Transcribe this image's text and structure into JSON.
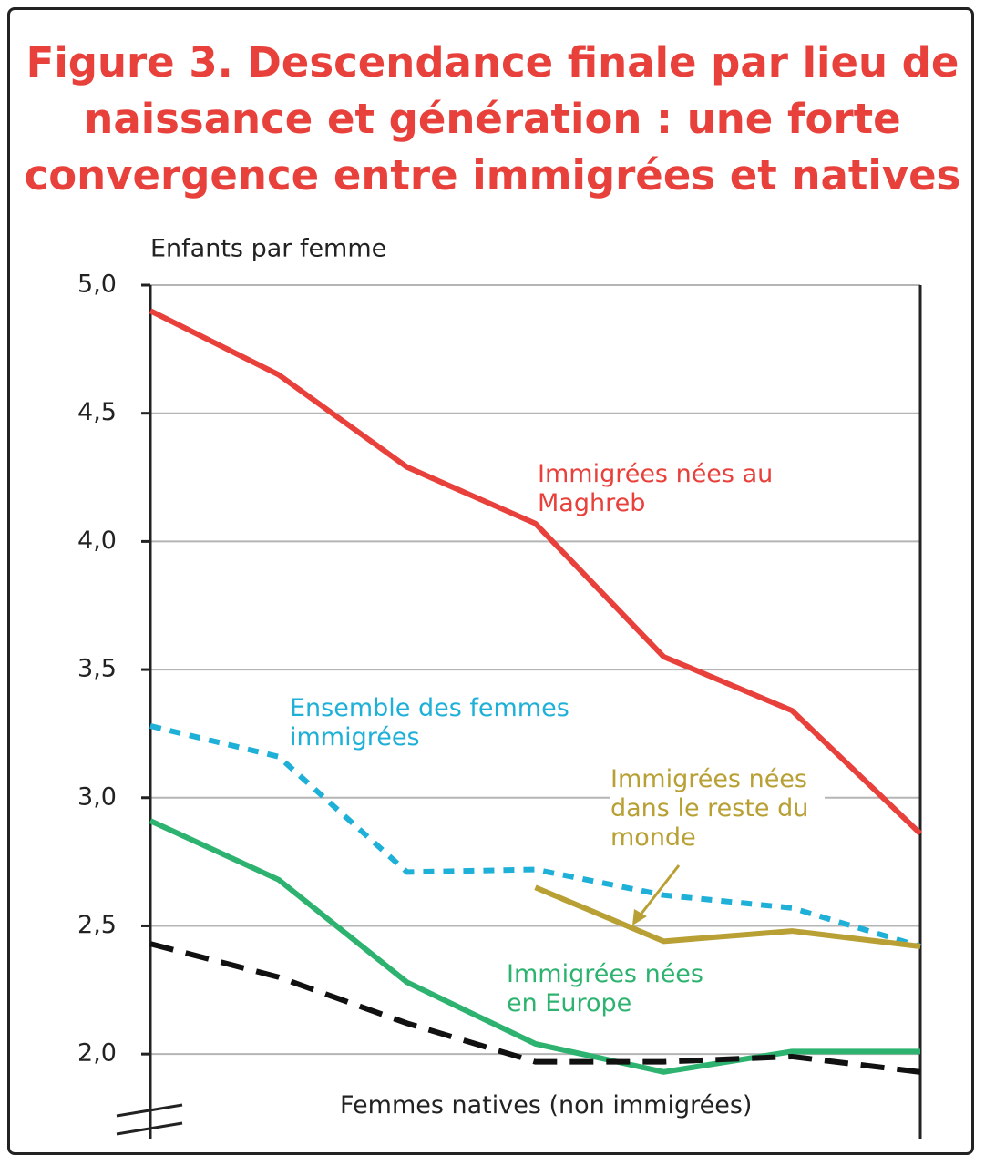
{
  "chart_data": {
    "type": "line",
    "title": "Figure 3. Descendance finale par lieu de naissance et génération : une forte convergence entre immigrées et natives",
    "y_label": "Enfants par femme",
    "categories": [
      null,
      null,
      null,
      null,
      null,
      null,
      null
    ],
    "ylim": [
      1.67,
      5
    ],
    "yticks": [
      {
        "value": 2,
        "label": "2,0"
      },
      {
        "value": 2.5,
        "label": "2,5"
      },
      {
        "value": 3,
        "label": "3,0"
      },
      {
        "value": 3.5,
        "label": "3,5"
      },
      {
        "value": 4,
        "label": "4,0"
      },
      {
        "value": 4.5,
        "label": "4,5"
      },
      {
        "value": 5,
        "label": "5,0"
      }
    ],
    "grid": true,
    "series": [
      {
        "name": "Immigrées nées au Maghreb",
        "color": "#e8413c",
        "style": "solid",
        "values": [
          4.9,
          4.65,
          4.29,
          4.07,
          3.55,
          3.34,
          2.86
        ]
      },
      {
        "name": "Ensemble des femmes immigrées",
        "color": "#1fb0d8",
        "style": "dotted",
        "values": [
          3.28,
          3.16,
          2.71,
          2.72,
          2.62,
          2.57,
          2.42
        ]
      },
      {
        "name": "Immigrées nées dans le reste du monde",
        "color": "#b8a035",
        "style": "solid",
        "values": [
          null,
          null,
          null,
          2.65,
          2.44,
          2.48,
          2.42
        ]
      },
      {
        "name": "Immigrées nées en Europe",
        "color": "#2db36f",
        "style": "solid",
        "values": [
          2.91,
          2.68,
          2.28,
          2.04,
          1.93,
          2.01,
          2.01
        ]
      },
      {
        "name": "Femmes natives (non immigrées)",
        "color": "#111111",
        "style": "dashed",
        "values": [
          2.43,
          2.3,
          2.12,
          1.97,
          1.97,
          1.99,
          1.93
        ]
      }
    ]
  }
}
